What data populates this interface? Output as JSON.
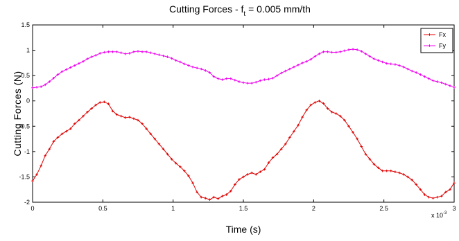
{
  "chart_data": {
    "type": "line",
    "title_main": "Cutting Forces - f",
    "title_sub": "t",
    "title_rest": " = 0.005 mm/th",
    "xlabel": "Time (s)",
    "ylabel": "Cutting Forces (N)",
    "x_multiplier": "x 10",
    "x_multiplier_exp": "-3",
    "xlim": [
      0,
      3
    ],
    "ylim": [
      -2,
      1.5
    ],
    "xticks": [
      0,
      0.5,
      1,
      1.5,
      2,
      2.5,
      3
    ],
    "xtick_labels": [
      "0",
      "0.5",
      "1",
      "1.5",
      "2",
      "2.5",
      "3"
    ],
    "yticks": [
      1.5,
      1,
      0.5,
      0,
      -0.5,
      -1,
      -1.5,
      -2
    ],
    "ytick_labels": [
      "1.5",
      "1",
      "0.5",
      "0",
      "-0.5",
      "-1",
      "-1.5",
      "-2"
    ],
    "grid": false,
    "legend_position": "top-right",
    "x": [
      0.0,
      0.03,
      0.06,
      0.09,
      0.12,
      0.15,
      0.18,
      0.21,
      0.24,
      0.27,
      0.3,
      0.33,
      0.36,
      0.39,
      0.42,
      0.45,
      0.48,
      0.51,
      0.54,
      0.57,
      0.6,
      0.63,
      0.66,
      0.69,
      0.72,
      0.75,
      0.78,
      0.81,
      0.84,
      0.87,
      0.9,
      0.93,
      0.96,
      0.99,
      1.02,
      1.05,
      1.08,
      1.11,
      1.14,
      1.17,
      1.2,
      1.23,
      1.26,
      1.29,
      1.32,
      1.35,
      1.38,
      1.41,
      1.44,
      1.47,
      1.5,
      1.53,
      1.56,
      1.59,
      1.62,
      1.65,
      1.68,
      1.71,
      1.74,
      1.77,
      1.8,
      1.83,
      1.86,
      1.89,
      1.92,
      1.95,
      1.98,
      2.01,
      2.04,
      2.07,
      2.1,
      2.13,
      2.16,
      2.19,
      2.22,
      2.25,
      2.28,
      2.31,
      2.34,
      2.37,
      2.4,
      2.43,
      2.46,
      2.49,
      2.52,
      2.55,
      2.58,
      2.61,
      2.64,
      2.67,
      2.7,
      2.73,
      2.76,
      2.79,
      2.82,
      2.85,
      2.88,
      2.91,
      2.94,
      2.97,
      3.0
    ],
    "series": [
      {
        "name": "Fx",
        "color": "#e00000",
        "values": [
          -1.58,
          -1.45,
          -1.28,
          -1.08,
          -0.95,
          -0.8,
          -0.72,
          -0.65,
          -0.6,
          -0.55,
          -0.45,
          -0.38,
          -0.3,
          -0.22,
          -0.15,
          -0.08,
          -0.03,
          -0.02,
          -0.06,
          -0.2,
          -0.27,
          -0.3,
          -0.33,
          -0.32,
          -0.35,
          -0.38,
          -0.45,
          -0.55,
          -0.65,
          -0.75,
          -0.85,
          -0.95,
          -1.05,
          -1.15,
          -1.23,
          -1.3,
          -1.38,
          -1.48,
          -1.62,
          -1.8,
          -1.9,
          -1.92,
          -1.95,
          -1.9,
          -1.93,
          -1.88,
          -1.85,
          -1.78,
          -1.65,
          -1.55,
          -1.5,
          -1.45,
          -1.42,
          -1.45,
          -1.4,
          -1.35,
          -1.22,
          -1.12,
          -1.05,
          -0.95,
          -0.85,
          -0.72,
          -0.6,
          -0.48,
          -0.32,
          -0.18,
          -0.08,
          -0.03,
          -0.0,
          -0.05,
          -0.15,
          -0.22,
          -0.25,
          -0.3,
          -0.38,
          -0.5,
          -0.62,
          -0.75,
          -0.9,
          -1.05,
          -1.15,
          -1.25,
          -1.32,
          -1.38,
          -1.38,
          -1.38,
          -1.4,
          -1.42,
          -1.45,
          -1.5,
          -1.56,
          -1.65,
          -1.75,
          -1.85,
          -1.9,
          -1.92,
          -1.9,
          -1.88,
          -1.8,
          -1.75,
          -1.62
        ]
      },
      {
        "name": "Fy",
        "color": "#ee00ee",
        "values": [
          0.26,
          0.27,
          0.28,
          0.32,
          0.38,
          0.45,
          0.52,
          0.58,
          0.62,
          0.66,
          0.7,
          0.74,
          0.78,
          0.83,
          0.87,
          0.9,
          0.94,
          0.96,
          0.97,
          0.97,
          0.97,
          0.95,
          0.93,
          0.94,
          0.97,
          0.98,
          0.97,
          0.97,
          0.95,
          0.93,
          0.91,
          0.89,
          0.87,
          0.84,
          0.8,
          0.77,
          0.73,
          0.7,
          0.67,
          0.65,
          0.63,
          0.6,
          0.56,
          0.48,
          0.44,
          0.42,
          0.44,
          0.44,
          0.41,
          0.38,
          0.36,
          0.35,
          0.35,
          0.37,
          0.4,
          0.42,
          0.43,
          0.45,
          0.5,
          0.55,
          0.59,
          0.63,
          0.67,
          0.71,
          0.75,
          0.78,
          0.82,
          0.88,
          0.93,
          0.97,
          0.97,
          0.96,
          0.96,
          0.97,
          0.99,
          1.01,
          1.02,
          1.01,
          0.98,
          0.93,
          0.88,
          0.83,
          0.8,
          0.77,
          0.74,
          0.73,
          0.72,
          0.7,
          0.67,
          0.63,
          0.59,
          0.56,
          0.52,
          0.48,
          0.44,
          0.4,
          0.38,
          0.36,
          0.33,
          0.3,
          0.27
        ]
      }
    ]
  }
}
